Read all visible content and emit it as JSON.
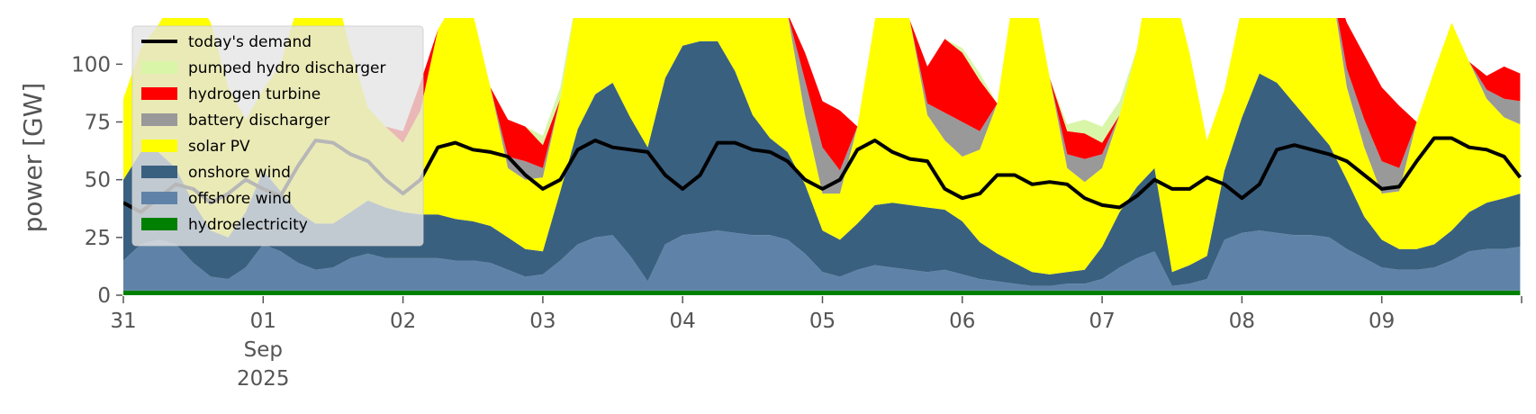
{
  "chart_data": {
    "type": "area",
    "title": "",
    "xlabel": "",
    "ylabel": "power [GW]",
    "x_start": "2025-08-31T00:00",
    "x_end": "2025-09-10T00:00",
    "ylim": [
      0,
      120
    ],
    "yticks": [
      0,
      25,
      50,
      75,
      100
    ],
    "xticks": [
      {
        "x": "2025-08-31",
        "lines": [
          "31"
        ]
      },
      {
        "x": "2025-09-01",
        "lines": [
          "01",
          "Sep",
          "2025"
        ]
      },
      {
        "x": "2025-09-02",
        "lines": [
          "02"
        ]
      },
      {
        "x": "2025-09-03",
        "lines": [
          "03"
        ]
      },
      {
        "x": "2025-09-04",
        "lines": [
          "04"
        ]
      },
      {
        "x": "2025-09-05",
        "lines": [
          "05"
        ]
      },
      {
        "x": "2025-09-06",
        "lines": [
          "06"
        ]
      },
      {
        "x": "2025-09-07",
        "lines": [
          "07"
        ]
      },
      {
        "x": "2025-09-08",
        "lines": [
          "08"
        ]
      },
      {
        "x": "2025-09-09",
        "lines": [
          "09"
        ]
      }
    ],
    "grid": false,
    "legend_position": "top-left",
    "legend": [
      {
        "name": "today's demand",
        "kind": "line",
        "color": "#000000"
      },
      {
        "name": "pumped hydro discharger",
        "kind": "patch",
        "color": "#d9f5a8"
      },
      {
        "name": "hydrogen turbine",
        "kind": "patch",
        "color": "#ff0000"
      },
      {
        "name": "battery discharger",
        "kind": "patch",
        "color": "#999999"
      },
      {
        "name": "solar PV",
        "kind": "patch",
        "color": "#ffff00"
      },
      {
        "name": "onshore wind",
        "kind": "patch",
        "color": "#3a6080"
      },
      {
        "name": "offshore wind",
        "kind": "patch",
        "color": "#5f83a8"
      },
      {
        "name": "hydroelectricity",
        "kind": "patch",
        "color": "#008000"
      }
    ],
    "x_days": [
      0,
      0.125,
      0.25,
      0.375,
      0.5,
      0.625,
      0.75,
      0.875,
      1,
      1.125,
      1.25,
      1.375,
      1.5,
      1.625,
      1.75,
      1.875,
      2,
      2.125,
      2.25,
      2.375,
      2.5,
      2.625,
      2.75,
      2.875,
      3,
      3.125,
      3.25,
      3.375,
      3.5,
      3.625,
      3.75,
      3.875,
      4,
      4.125,
      4.25,
      4.375,
      4.5,
      4.625,
      4.75,
      4.875,
      5,
      5.125,
      5.25,
      5.375,
      5.5,
      5.625,
      5.75,
      5.875,
      6,
      6.125,
      6.25,
      6.375,
      6.5,
      6.625,
      6.75,
      6.875,
      7,
      7.125,
      7.25,
      7.375,
      7.5,
      7.625,
      7.75,
      7.875,
      8,
      8.125,
      8.25,
      8.375,
      8.5,
      8.625,
      8.75,
      8.875,
      9,
      9.125,
      9.25,
      9.375,
      9.5,
      9.625,
      9.75,
      9.875,
      9.99
    ],
    "series": [
      {
        "name": "hydroelectricity",
        "color": "#008000",
        "values": [
          2,
          2,
          2,
          2,
          2,
          2,
          2,
          2,
          2,
          2,
          2,
          2,
          2,
          2,
          2,
          2,
          2,
          2,
          2,
          2,
          2,
          2,
          2,
          2,
          2,
          2,
          2,
          2,
          2,
          2,
          2,
          2,
          2,
          2,
          2,
          2,
          2,
          2,
          2,
          2,
          2,
          2,
          2,
          2,
          2,
          2,
          2,
          2,
          2,
          2,
          2,
          2,
          2,
          2,
          2,
          2,
          2,
          2,
          2,
          2,
          2,
          2,
          2,
          2,
          2,
          2,
          2,
          2,
          2,
          2,
          2,
          2,
          2,
          2,
          2,
          2,
          2,
          2,
          2,
          2,
          2
        ]
      },
      {
        "name": "offshore wind",
        "color": "#5f83a8",
        "values": [
          13,
          20,
          22,
          20,
          12,
          6,
          5,
          10,
          20,
          17,
          12,
          9,
          10,
          14,
          16,
          14,
          14,
          14,
          14,
          13,
          13,
          12,
          9,
          6,
          7,
          13,
          20,
          23,
          24,
          15,
          4,
          20,
          24,
          25,
          26,
          25,
          24,
          24,
          22,
          16,
          8,
          6,
          9,
          11,
          10,
          9,
          8,
          9,
          7,
          5,
          4,
          3,
          2,
          2,
          3,
          3,
          5,
          10,
          14,
          17,
          2,
          3,
          5,
          22,
          25,
          26,
          25,
          24,
          24,
          23,
          18,
          14,
          10,
          9,
          9,
          10,
          13,
          17,
          18,
          18,
          19
        ]
      },
      {
        "name": "onshore wind",
        "color": "#3a6080",
        "values": [
          35,
          40,
          38,
          33,
          26,
          20,
          18,
          24,
          32,
          26,
          22,
          20,
          19,
          20,
          23,
          22,
          20,
          19,
          19,
          18,
          17,
          16,
          14,
          12,
          10,
          30,
          50,
          62,
          66,
          60,
          58,
          72,
          82,
          83,
          82,
          70,
          52,
          42,
          38,
          30,
          18,
          16,
          20,
          26,
          28,
          28,
          28,
          26,
          23,
          16,
          12,
          9,
          6,
          5,
          5,
          6,
          14,
          24,
          31,
          36,
          6,
          8,
          10,
          30,
          50,
          68,
          65,
          57,
          48,
          40,
          30,
          18,
          12,
          9,
          9,
          10,
          13,
          17,
          20,
          22,
          23
        ]
      },
      {
        "name": "solar PV",
        "color": "#ffff00",
        "values": [
          35,
          45,
          55,
          75,
          90,
          90,
          65,
          40,
          35,
          55,
          90,
          115,
          105,
          70,
          40,
          35,
          30,
          45,
          80,
          95,
          90,
          60,
          30,
          30,
          32,
          40,
          60,
          100,
          150,
          120,
          70,
          75,
          82,
          87,
          95,
          120,
          145,
          110,
          60,
          30,
          16,
          20,
          42,
          80,
          108,
          80,
          40,
          30,
          28,
          40,
          65,
          120,
          125,
          85,
          45,
          38,
          34,
          42,
          60,
          100,
          125,
          92,
          50,
          35,
          48,
          58,
          75,
          100,
          125,
          75,
          40,
          30,
          20,
          25,
          55,
          75,
          90,
          65,
          45,
          35,
          30
        ]
      },
      {
        "name": "battery discharger",
        "color": "#999999",
        "values": [
          0,
          0,
          0,
          0,
          0,
          0,
          0,
          0,
          0,
          0,
          0,
          0,
          0,
          0,
          0,
          0,
          0,
          0,
          0,
          0,
          0,
          0,
          5,
          8,
          4,
          0,
          0,
          0,
          0,
          0,
          0,
          0,
          4,
          8,
          12,
          0,
          0,
          0,
          0,
          15,
          20,
          10,
          0,
          0,
          0,
          0,
          5,
          12,
          15,
          8,
          0,
          0,
          0,
          0,
          6,
          10,
          6,
          0,
          0,
          0,
          0,
          0,
          0,
          0,
          0,
          0,
          0,
          0,
          0,
          0,
          8,
          12,
          14,
          10,
          0,
          0,
          0,
          0,
          4,
          8,
          10
        ]
      },
      {
        "name": "hydrogen turbine",
        "color": "#ff0000",
        "values": [
          0,
          0,
          0,
          0,
          0,
          0,
          0,
          0,
          0,
          0,
          0,
          0,
          0,
          0,
          0,
          0,
          5,
          12,
          0,
          0,
          0,
          0,
          16,
          15,
          10,
          0,
          0,
          0,
          0,
          0,
          0,
          0,
          0,
          0,
          0,
          0,
          0,
          0,
          0,
          12,
          20,
          26,
          0,
          0,
          0,
          0,
          16,
          32,
          30,
          22,
          0,
          0,
          0,
          0,
          10,
          11,
          5,
          0,
          0,
          0,
          0,
          0,
          0,
          0,
          0,
          0,
          0,
          0,
          0,
          0,
          20,
          28,
          32,
          27,
          0,
          0,
          0,
          0,
          6,
          14,
          12
        ]
      },
      {
        "name": "pumped hydro discharger",
        "color": "#d9f5a8",
        "values": [
          0,
          0,
          0,
          0,
          0,
          0,
          0,
          0,
          0,
          0,
          0,
          0,
          0,
          0,
          0,
          0,
          0,
          0,
          0,
          0,
          0,
          0,
          0,
          0,
          4,
          5,
          0,
          0,
          0,
          0,
          0,
          0,
          0,
          0,
          0,
          0,
          0,
          0,
          0,
          0,
          0,
          0,
          0,
          0,
          0,
          0,
          0,
          0,
          2,
          3,
          0,
          0,
          0,
          0,
          3,
          6,
          7,
          6,
          0,
          0,
          0,
          0,
          0,
          0,
          0,
          0,
          0,
          0,
          0,
          0,
          0,
          0,
          0,
          0,
          0,
          0,
          0,
          0,
          0,
          0,
          0
        ]
      }
    ],
    "demand": {
      "name": "today's demand",
      "color": "#000000",
      "values": [
        40,
        36,
        42,
        48,
        46,
        40,
        44,
        50,
        46,
        43,
        56,
        67,
        66,
        61,
        58,
        50,
        44,
        50,
        64,
        66,
        63,
        62,
        60,
        52,
        46,
        50,
        63,
        67,
        64,
        63,
        62,
        52,
        46,
        52,
        66,
        66,
        63,
        62,
        58,
        50,
        46,
        50,
        63,
        67,
        62,
        59,
        58,
        46,
        42,
        44,
        52,
        52,
        48,
        49,
        48,
        42,
        39,
        38,
        43,
        50,
        46,
        46,
        51,
        48,
        42,
        48,
        63,
        65,
        63,
        61,
        58,
        52,
        46,
        47,
        58,
        68,
        68,
        64,
        63,
        60,
        51
      ]
    }
  }
}
